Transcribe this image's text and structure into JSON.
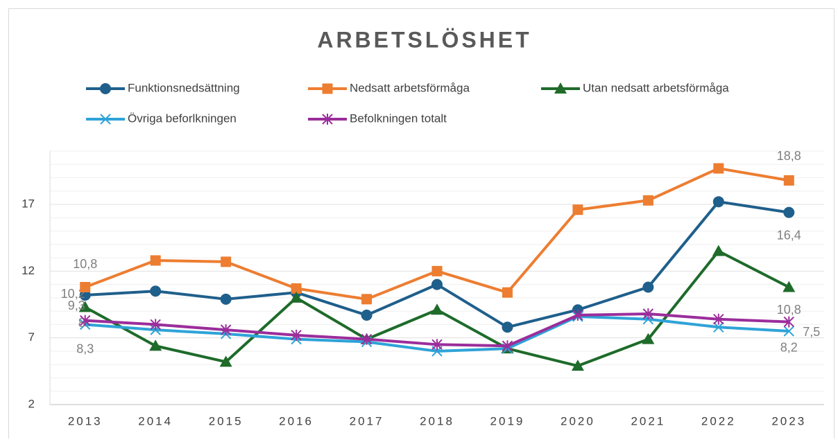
{
  "chart_data": {
    "type": "line",
    "title": "ARBETSLÖSHET",
    "categories": [
      "2013",
      "2014",
      "2015",
      "2016",
      "2017",
      "2018",
      "2019",
      "2020",
      "2021",
      "2022",
      "2023"
    ],
    "ylim": [
      2,
      21
    ],
    "yticks": [
      2,
      7,
      12,
      17
    ],
    "grid": true,
    "series": [
      {
        "name": "Funktionsnedsättning",
        "color": "#1f5f8b",
        "marker": "circle",
        "values": [
          10.2,
          10.5,
          9.9,
          10.4,
          8.7,
          11.0,
          7.8,
          9.1,
          10.8,
          17.2,
          16.4
        ],
        "value_labels": [
          "10,2",
          null,
          null,
          null,
          null,
          null,
          null,
          null,
          null,
          null,
          "16,4"
        ]
      },
      {
        "name": "Nedsatt arbetsförmåga",
        "color": "#ed7d31",
        "marker": "square",
        "values": [
          10.8,
          12.8,
          12.7,
          10.7,
          9.9,
          12.0,
          10.4,
          16.6,
          17.3,
          19.7,
          18.8
        ],
        "value_labels": [
          "10,8",
          null,
          null,
          null,
          null,
          null,
          null,
          null,
          null,
          null,
          "18,8"
        ]
      },
      {
        "name": "Utan nedsatt arbetsförmåga",
        "color": "#1e6b2a",
        "marker": "triangle",
        "values": [
          9.3,
          6.4,
          5.2,
          10.0,
          6.9,
          9.1,
          6.2,
          4.9,
          6.9,
          13.5,
          10.8
        ],
        "value_labels": [
          "9,3",
          null,
          null,
          null,
          null,
          null,
          null,
          null,
          null,
          null,
          "10,8"
        ]
      },
      {
        "name": "Övriga beforlkningen",
        "color": "#2ea3d8",
        "marker": "x",
        "values": [
          8.0,
          7.6,
          7.3,
          6.9,
          6.7,
          6.0,
          6.2,
          8.6,
          8.4,
          7.8,
          7.5
        ],
        "value_labels": [
          "8",
          null,
          null,
          null,
          null,
          null,
          null,
          null,
          null,
          null,
          "7,5"
        ]
      },
      {
        "name": "Befolkningen totalt",
        "color": "#9b2d9b",
        "marker": "star",
        "values": [
          8.3,
          8.0,
          7.6,
          7.2,
          6.9,
          6.5,
          6.4,
          8.7,
          8.8,
          8.4,
          8.2
        ],
        "value_labels": [
          "8,3",
          null,
          null,
          null,
          null,
          null,
          null,
          null,
          null,
          null,
          "8,2"
        ]
      }
    ]
  }
}
